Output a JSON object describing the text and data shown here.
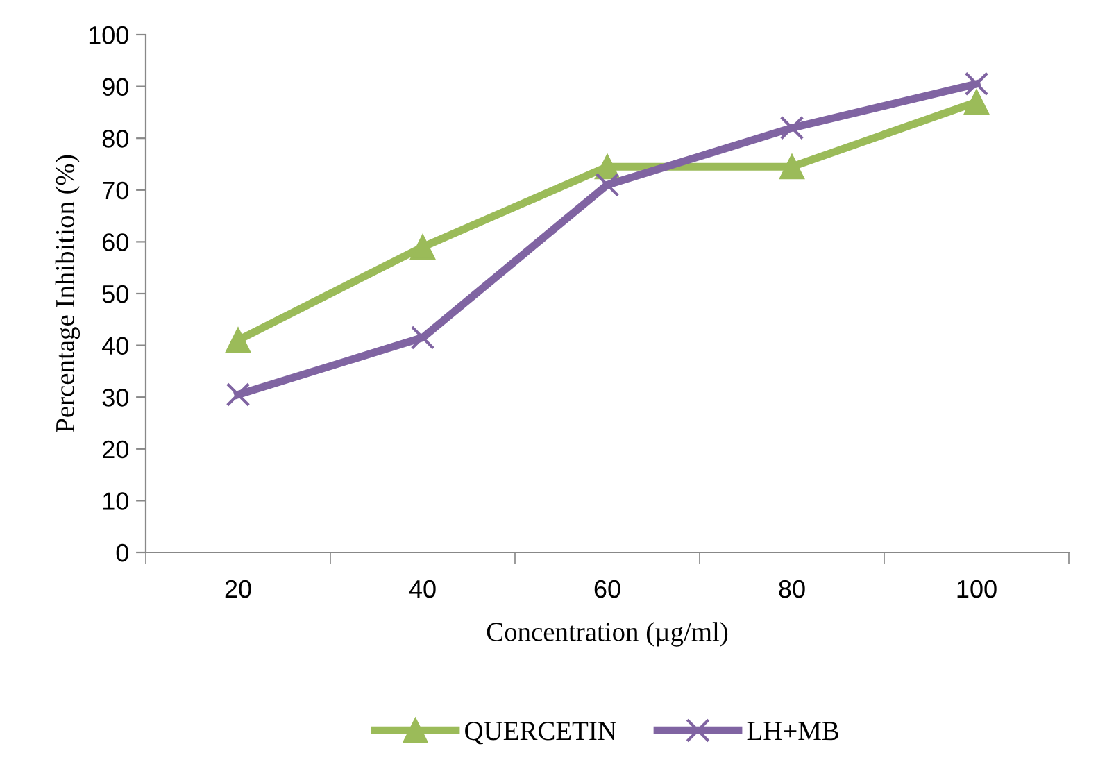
{
  "chart_data": {
    "type": "line",
    "xlabel": "Concentration (µg/ml)",
    "ylabel": "Percentage Inhibition (%)",
    "categories": [
      "20",
      "40",
      "60",
      "80",
      "100"
    ],
    "series": [
      {
        "name": "QUERCETIN",
        "color": "#9bbb59",
        "marker": "triangle",
        "values": [
          41,
          59,
          74.5,
          74.5,
          87
        ]
      },
      {
        "name": "LH+MB",
        "color": "#8064a2",
        "marker": "cross",
        "values": [
          30.5,
          41.5,
          71,
          82,
          90.5
        ]
      }
    ],
    "ylim": [
      0,
      100
    ],
    "yticks": [
      0,
      10,
      20,
      30,
      40,
      50,
      60,
      70,
      80,
      90,
      100
    ],
    "grid": false,
    "legend": "bottom",
    "line_style": "solid"
  }
}
